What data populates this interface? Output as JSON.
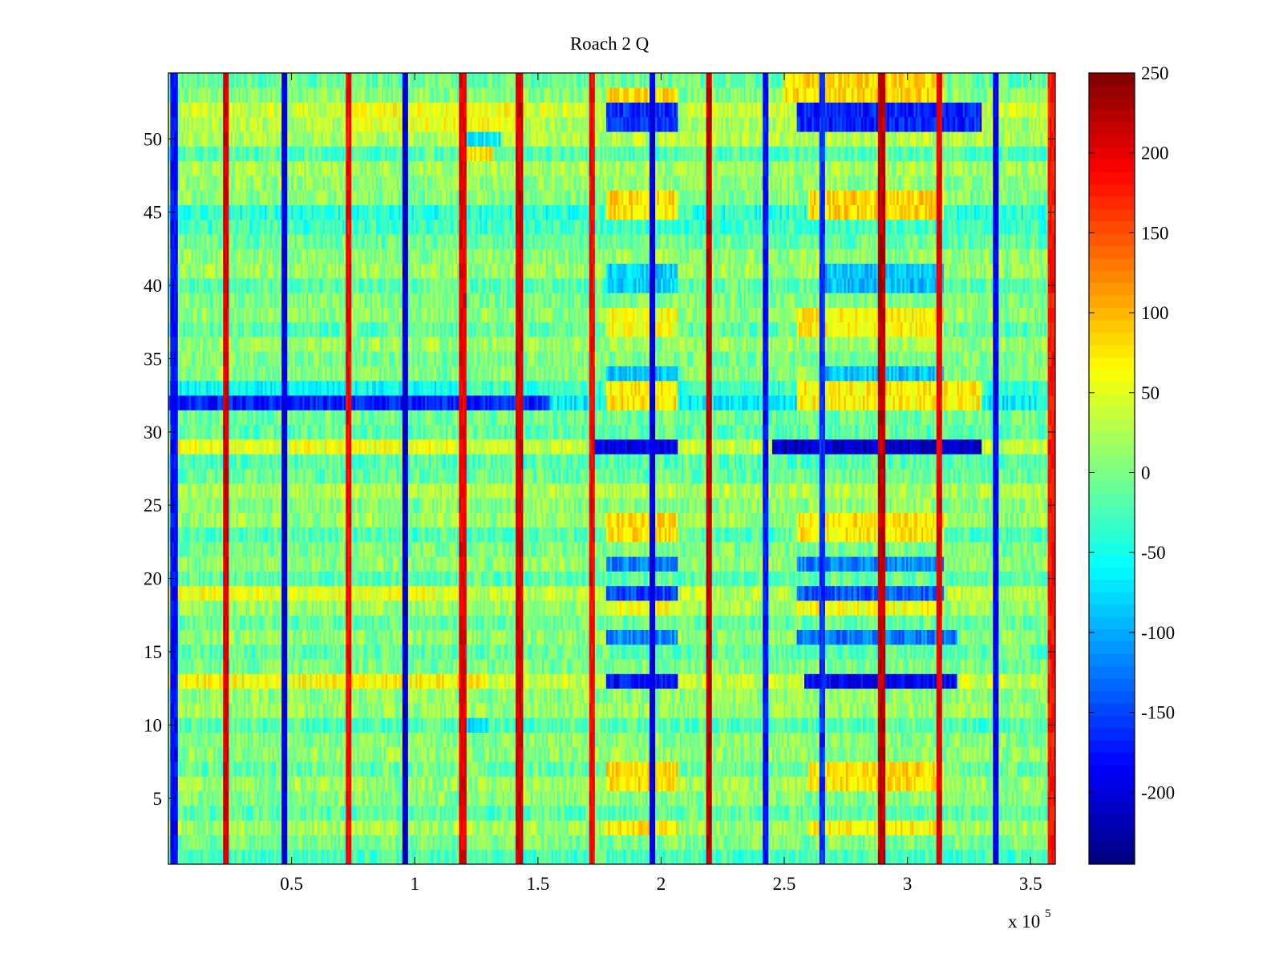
{
  "chart_data": {
    "type": "heatmap",
    "title": "Roach 2 Q",
    "xlabel": "",
    "ylabel": "",
    "x_multiplier_label": {
      "base": "x 10",
      "exponent": "5"
    },
    "xlim": [
      0,
      360000
    ],
    "ylim": [
      0.5,
      54.5
    ],
    "x_ticks": [
      {
        "value": 50000,
        "label": "0.5"
      },
      {
        "value": 100000,
        "label": "1"
      },
      {
        "value": 150000,
        "label": "1.5"
      },
      {
        "value": 200000,
        "label": "2"
      },
      {
        "value": 250000,
        "label": "2.5"
      },
      {
        "value": 300000,
        "label": "3"
      },
      {
        "value": 350000,
        "label": "3.5"
      }
    ],
    "y_ticks": [
      {
        "value": 5,
        "label": "5"
      },
      {
        "value": 10,
        "label": "10"
      },
      {
        "value": 15,
        "label": "15"
      },
      {
        "value": 20,
        "label": "20"
      },
      {
        "value": 25,
        "label": "25"
      },
      {
        "value": 30,
        "label": "30"
      },
      {
        "value": 35,
        "label": "35"
      },
      {
        "value": 40,
        "label": "40"
      },
      {
        "value": 45,
        "label": "45"
      },
      {
        "value": 50,
        "label": "50"
      }
    ],
    "colorbar": {
      "colormap": "jet",
      "clim": [
        -245,
        250
      ],
      "ticks": [
        {
          "value": 250,
          "label": "250"
        },
        {
          "value": 200,
          "label": "200"
        },
        {
          "value": 150,
          "label": "150"
        },
        {
          "value": 100,
          "label": "100"
        },
        {
          "value": 50,
          "label": "50"
        },
        {
          "value": 0,
          "label": "0"
        },
        {
          "value": -50,
          "label": "-50"
        },
        {
          "value": -100,
          "label": "-100"
        },
        {
          "value": -150,
          "label": "-150"
        },
        {
          "value": -200,
          "label": "-200"
        }
      ]
    },
    "rows": 54,
    "background_level": -5,
    "noise_amplitude": 35,
    "row_offsets": [
      -20,
      5,
      25,
      -10,
      10,
      20,
      -5,
      15,
      10,
      -15,
      20,
      15,
      40,
      5,
      -10,
      15,
      -5,
      20,
      35,
      -10,
      15,
      5,
      -15,
      20,
      10,
      30,
      -5,
      -15,
      40,
      -10,
      0,
      -60,
      -30,
      10,
      5,
      20,
      -10,
      15,
      5,
      -10,
      20,
      15,
      -5,
      -25,
      -35,
      10,
      15,
      25,
      -15,
      30,
      30,
      45,
      10,
      -5
    ],
    "stripes": [
      {
        "x": 2000,
        "value": -180,
        "width": 1500
      },
      {
        "x": 23500,
        "value": 210,
        "width": 1200
      },
      {
        "x": 47000,
        "value": -200,
        "width": 1200
      },
      {
        "x": 73000,
        "value": 190,
        "width": 1200
      },
      {
        "x": 96000,
        "value": -210,
        "width": 1200
      },
      {
        "x": 119500,
        "value": 200,
        "width": 1200
      },
      {
        "x": 142500,
        "value": 210,
        "width": 1200
      },
      {
        "x": 172000,
        "value": 190,
        "width": 1200
      },
      {
        "x": 196500,
        "value": -200,
        "width": 1200
      },
      {
        "x": 219500,
        "value": 220,
        "width": 1200
      },
      {
        "x": 242500,
        "value": -180,
        "width": 1200
      },
      {
        "x": 265500,
        "value": -160,
        "width": 1200
      },
      {
        "x": 289500,
        "value": 220,
        "width": 1200
      },
      {
        "x": 313000,
        "value": 200,
        "width": 1200
      },
      {
        "x": 336000,
        "value": -190,
        "width": 1200
      },
      {
        "x": 358500,
        "value": 180,
        "width": 1500
      }
    ],
    "blocks": [
      {
        "x0": 0,
        "x1": 155000,
        "rows": [
          32
        ],
        "value": -170
      },
      {
        "x0": 0,
        "x1": 115000,
        "rows": [
          33
        ],
        "value": -55
      },
      {
        "x0": 0,
        "x1": 120000,
        "rows": [
          29
        ],
        "value": 55
      },
      {
        "x0": 0,
        "x1": 120000,
        "rows": [
          19
        ],
        "value": 55
      },
      {
        "x0": 0,
        "x1": 130000,
        "rows": [
          13
        ],
        "value": 65
      },
      {
        "x0": 75000,
        "x1": 145000,
        "rows": [
          51,
          52
        ],
        "value": 60
      },
      {
        "x0": 118000,
        "x1": 132000,
        "rows": [
          49
        ],
        "value": 80
      },
      {
        "x0": 118000,
        "x1": 135000,
        "rows": [
          50
        ],
        "value": -60
      },
      {
        "x0": 118000,
        "x1": 130000,
        "rows": [
          10
        ],
        "value": -70
      },
      {
        "x0": 178000,
        "x1": 207000,
        "rows": [
          51,
          52
        ],
        "value": -160
      },
      {
        "x0": 178000,
        "x1": 207000,
        "rows": [
          53
        ],
        "value": 80
      },
      {
        "x0": 178000,
        "x1": 207000,
        "rows": [
          45,
          46
        ],
        "value": 80
      },
      {
        "x0": 178000,
        "x1": 207000,
        "rows": [
          40,
          41
        ],
        "value": -80
      },
      {
        "x0": 178000,
        "x1": 207000,
        "rows": [
          37,
          38
        ],
        "value": 60
      },
      {
        "x0": 178000,
        "x1": 207000,
        "rows": [
          34
        ],
        "value": -90
      },
      {
        "x0": 178000,
        "x1": 207000,
        "rows": [
          32,
          33
        ],
        "value": 75
      },
      {
        "x0": 172000,
        "x1": 207000,
        "rows": [
          29
        ],
        "value": -200
      },
      {
        "x0": 178000,
        "x1": 207000,
        "rows": [
          23,
          24
        ],
        "value": 80
      },
      {
        "x0": 178000,
        "x1": 207000,
        "rows": [
          21
        ],
        "value": -120
      },
      {
        "x0": 178000,
        "x1": 207000,
        "rows": [
          19
        ],
        "value": -150
      },
      {
        "x0": 178000,
        "x1": 207000,
        "rows": [
          18
        ],
        "value": 60
      },
      {
        "x0": 178000,
        "x1": 207000,
        "rows": [
          16
        ],
        "value": -120
      },
      {
        "x0": 178000,
        "x1": 207000,
        "rows": [
          13
        ],
        "value": -180
      },
      {
        "x0": 178000,
        "x1": 207000,
        "rows": [
          6,
          7
        ],
        "value": 80
      },
      {
        "x0": 178000,
        "x1": 207000,
        "rows": [
          3
        ],
        "value": 75
      },
      {
        "x0": 255000,
        "x1": 330000,
        "rows": [
          51,
          52
        ],
        "value": -170
      },
      {
        "x0": 250000,
        "x1": 315000,
        "rows": [
          53,
          54
        ],
        "value": 80
      },
      {
        "x0": 260000,
        "x1": 315000,
        "rows": [
          45,
          46
        ],
        "value": 85
      },
      {
        "x0": 265000,
        "x1": 315000,
        "rows": [
          40,
          41
        ],
        "value": -90
      },
      {
        "x0": 255000,
        "x1": 315000,
        "rows": [
          37,
          38
        ],
        "value": 70
      },
      {
        "x0": 265000,
        "x1": 315000,
        "rows": [
          34
        ],
        "value": -90
      },
      {
        "x0": 255000,
        "x1": 330000,
        "rows": [
          32,
          33
        ],
        "value": 70
      },
      {
        "x0": 245000,
        "x1": 330000,
        "rows": [
          29
        ],
        "value": -210
      },
      {
        "x0": 255000,
        "x1": 315000,
        "rows": [
          23,
          24
        ],
        "value": 75
      },
      {
        "x0": 255000,
        "x1": 315000,
        "rows": [
          21
        ],
        "value": -120
      },
      {
        "x0": 255000,
        "x1": 315000,
        "rows": [
          19
        ],
        "value": -140
      },
      {
        "x0": 255000,
        "x1": 315000,
        "rows": [
          18
        ],
        "value": 60
      },
      {
        "x0": 255000,
        "x1": 320000,
        "rows": [
          16
        ],
        "value": -125
      },
      {
        "x0": 258000,
        "x1": 320000,
        "rows": [
          13
        ],
        "value": -190
      },
      {
        "x0": 260000,
        "x1": 315000,
        "rows": [
          6,
          7
        ],
        "value": 80
      },
      {
        "x0": 260000,
        "x1": 315000,
        "rows": [
          3
        ],
        "value": 70
      }
    ]
  }
}
